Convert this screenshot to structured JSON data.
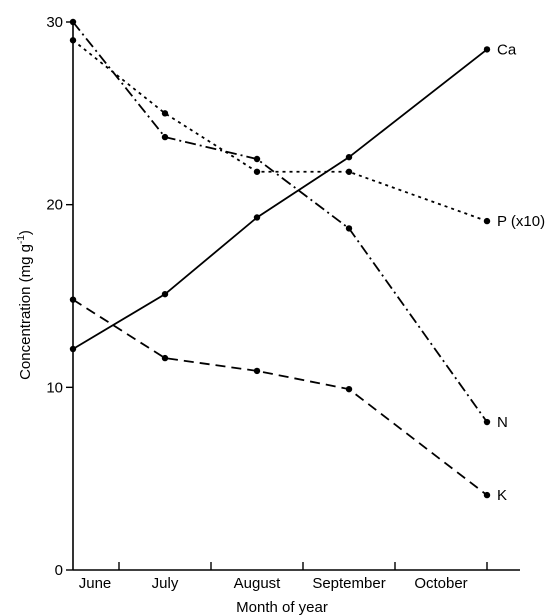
{
  "chart_data": {
    "type": "line",
    "title": "",
    "xlabel": "Month of year",
    "ylabel": "Concentration (mg g",
    "ylabel_superscript": "-1",
    "categories": [
      "June",
      "July",
      "August",
      "September",
      "October"
    ],
    "ylim": [
      0,
      30
    ],
    "yticks": [
      0,
      10,
      20,
      30
    ],
    "grid": false,
    "legend": "inline-right",
    "series": [
      {
        "name": "Ca",
        "style": "solid",
        "x": [
          0,
          1,
          2,
          3,
          4.5
        ],
        "values": [
          12.1,
          15.1,
          19.3,
          22.6,
          28.5
        ]
      },
      {
        "name": "P (x10)",
        "style": "dotted",
        "x": [
          0,
          1,
          2,
          3,
          4.5
        ],
        "values": [
          29.0,
          25.0,
          21.8,
          21.8,
          19.1
        ]
      },
      {
        "name": "N",
        "style": "dashdot",
        "x": [
          0,
          1,
          2,
          3,
          4.5
        ],
        "values": [
          30.0,
          23.7,
          22.5,
          18.7,
          8.1
        ]
      },
      {
        "name": "K",
        "style": "dashed",
        "x": [
          0,
          1,
          2,
          3,
          4.5
        ],
        "values": [
          14.8,
          11.6,
          10.9,
          9.9,
          4.1
        ]
      }
    ]
  }
}
